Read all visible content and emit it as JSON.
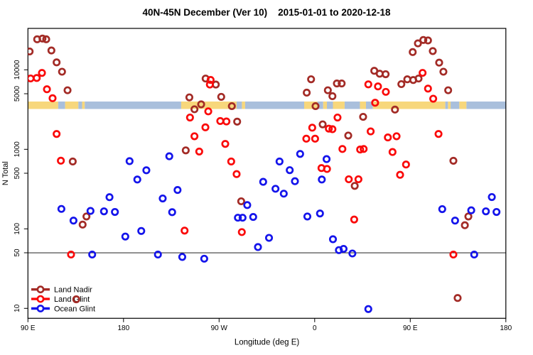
{
  "title": {
    "main": "40N-45N December (Ver 10)",
    "dates": "2015-01-01 to 2020-12-18"
  },
  "chart_data": {
    "type": "scatter",
    "xlabel": "Longitude (deg E)",
    "ylabel": "N Total",
    "x_axis": {
      "range_deg": [
        -270,
        180
      ],
      "ticks": [
        {
          "deg": -270,
          "label": "90 E"
        },
        {
          "deg": -180,
          "label": "180"
        },
        {
          "deg": -90,
          "label": "90 W"
        },
        {
          "deg": 0,
          "label": "0"
        },
        {
          "deg": 90,
          "label": "90 E"
        },
        {
          "deg": 180,
          "label": "180"
        }
      ]
    },
    "y_axis": {
      "scale": "log",
      "range": [
        7.5,
        33000
      ],
      "ticks": [
        {
          "value": 10000,
          "label": "10000"
        },
        {
          "value": 5000,
          "label": "5000"
        },
        {
          "value": 1000,
          "label": "1000"
        },
        {
          "value": 500,
          "label": "500"
        },
        {
          "value": 100,
          "label": "100"
        },
        {
          "value": 50,
          "label": "50"
        },
        {
          "value": 10,
          "label": "10"
        }
      ],
      "gridline_at": 50
    },
    "map_band": {
      "value_top": 3990,
      "value_bottom": 3215,
      "land_color": "#F7D77C",
      "ocean_color": "#A9BFDC",
      "segments": [
        {
          "type": "land",
          "from": -270,
          "to": -241.5
        },
        {
          "type": "ocean",
          "from": -241.5,
          "to": -235
        },
        {
          "type": "land",
          "from": -235,
          "to": -222.5
        },
        {
          "type": "ocean",
          "from": -222.5,
          "to": -219
        },
        {
          "type": "land",
          "from": -219,
          "to": -216.5
        },
        {
          "type": "ocean",
          "from": -216.5,
          "to": -125.7
        },
        {
          "type": "land",
          "from": -125.7,
          "to": -73.5
        },
        {
          "type": "ocean",
          "from": -73.5,
          "to": -68.5
        },
        {
          "type": "land",
          "from": -68.5,
          "to": -65.5
        },
        {
          "type": "ocean",
          "from": -65.5,
          "to": -9.9
        },
        {
          "type": "land",
          "from": -9.9,
          "to": 2.6
        },
        {
          "type": "ocean",
          "from": 2.6,
          "to": 8
        },
        {
          "type": "land",
          "from": 8,
          "to": 11.5
        },
        {
          "type": "ocean",
          "from": 11.5,
          "to": 17.2
        },
        {
          "type": "land",
          "from": 17.2,
          "to": 28.2
        },
        {
          "type": "ocean",
          "from": 28.2,
          "to": 42.6
        },
        {
          "type": "land",
          "from": 42.6,
          "to": 48.3
        },
        {
          "type": "ocean",
          "from": 48.3,
          "to": 54.8
        },
        {
          "type": "land",
          "from": 54.8,
          "to": 123
        },
        {
          "type": "ocean",
          "from": 123,
          "to": 125.5
        },
        {
          "type": "land",
          "from": 125.5,
          "to": 128
        },
        {
          "type": "ocean",
          "from": 128,
          "to": 136.2
        },
        {
          "type": "land",
          "from": 136.2,
          "to": 142.9
        },
        {
          "type": "ocean",
          "from": 142.9,
          "to": 180
        }
      ]
    },
    "legend": {
      "position": "bottom-left"
    },
    "series": [
      {
        "name": "Land Nadir",
        "color": "#A32B26",
        "points": [
          [
            -268.4,
            17000
          ],
          [
            -261.3,
            24200
          ],
          [
            -256.3,
            24700
          ],
          [
            -252.8,
            24200
          ],
          [
            -247.9,
            17500
          ],
          [
            -243,
            12400
          ],
          [
            -237.9,
            9460
          ],
          [
            -232.7,
            5530
          ],
          [
            -227.8,
            703
          ],
          [
            -224.5,
            13
          ],
          [
            -218.5,
            113
          ],
          [
            -214.9,
            143
          ],
          [
            -121.4,
            970
          ],
          [
            -118,
            4500
          ],
          [
            -113.2,
            3190
          ],
          [
            -106.9,
            3680
          ],
          [
            -102.7,
            7760
          ],
          [
            -93.1,
            6520
          ],
          [
            -88,
            4570
          ],
          [
            -78,
            3490
          ],
          [
            -73,
            2230
          ],
          [
            -69.2,
            222
          ],
          [
            -7.5,
            5160
          ],
          [
            -3.4,
            7600
          ],
          [
            0.8,
            3490
          ],
          [
            7.5,
            2060
          ],
          [
            12.4,
            5530
          ],
          [
            16.7,
            4660
          ],
          [
            20.9,
            6730
          ],
          [
            25.4,
            6730
          ],
          [
            31.6,
            1490
          ],
          [
            37.7,
            347
          ],
          [
            45.6,
            2560
          ],
          [
            56.1,
            9710
          ],
          [
            61.2,
            8930
          ],
          [
            66.8,
            8800
          ],
          [
            75.6,
            3160
          ],
          [
            81.6,
            6600
          ],
          [
            87.2,
            7590
          ],
          [
            92.3,
            16700
          ],
          [
            92.8,
            7440
          ],
          [
            97.2,
            21500
          ],
          [
            97.8,
            7760
          ],
          [
            102.3,
            23700
          ],
          [
            106.7,
            23400
          ],
          [
            111.2,
            17200
          ],
          [
            117.2,
            12300
          ],
          [
            121.2,
            9460
          ],
          [
            125.7,
            5530
          ],
          [
            130.6,
            718
          ],
          [
            134.6,
            13.5
          ],
          [
            141.4,
            111
          ],
          [
            144.7,
            143
          ]
        ]
      },
      {
        "name": "Land Glint",
        "color": "#FA0A0A",
        "points": [
          [
            -267.5,
            7780
          ],
          [
            -261.7,
            7890
          ],
          [
            -256.8,
            9140
          ],
          [
            -252.1,
            5690
          ],
          [
            -246.8,
            4390
          ],
          [
            -243,
            1560
          ],
          [
            -239,
            719
          ],
          [
            -229.4,
            47.5
          ],
          [
            -122.5,
            95
          ],
          [
            -117.4,
            2510
          ],
          [
            -113.2,
            1460
          ],
          [
            -108.7,
            938
          ],
          [
            -102.9,
            1890
          ],
          [
            -100.2,
            3000
          ],
          [
            -98,
            7460
          ],
          [
            -98.7,
            6520
          ],
          [
            -88.9,
            2270
          ],
          [
            -84.2,
            1170
          ],
          [
            -83.1,
            2240
          ],
          [
            -78.6,
            703
          ],
          [
            -73.5,
            488
          ],
          [
            -68.6,
            91
          ],
          [
            -7.9,
            1360
          ],
          [
            -2.3,
            1870
          ],
          [
            0.4,
            1360
          ],
          [
            6.4,
            581
          ],
          [
            11.6,
            566
          ],
          [
            13.3,
            1820
          ],
          [
            16.7,
            1790
          ],
          [
            21.5,
            2510
          ],
          [
            26.1,
            1010
          ],
          [
            32.1,
            420
          ],
          [
            37.2,
            131
          ],
          [
            41.2,
            420
          ],
          [
            42.8,
            994
          ],
          [
            46.1,
            1010
          ],
          [
            50.5,
            6560
          ],
          [
            52.7,
            1680
          ],
          [
            56.9,
            3850
          ],
          [
            59.6,
            6180
          ],
          [
            67,
            5280
          ],
          [
            68.9,
            1410
          ],
          [
            73.3,
            925
          ],
          [
            77.1,
            1460
          ],
          [
            80.4,
            478
          ],
          [
            86,
            644
          ],
          [
            101.6,
            9150
          ],
          [
            106.7,
            5800
          ],
          [
            111.6,
            4330
          ],
          [
            116.6,
            1560
          ],
          [
            130.6,
            47.5
          ]
        ]
      },
      {
        "name": "Ocean Glint",
        "color": "#1414EB",
        "points": [
          [
            -238.5,
            178
          ],
          [
            -227.1,
            127
          ],
          [
            -211.1,
            168
          ],
          [
            -209.5,
            47.5
          ],
          [
            -198.4,
            166
          ],
          [
            -193.2,
            250
          ],
          [
            -188.1,
            163
          ],
          [
            -178.3,
            80
          ],
          [
            -174.3,
            710
          ],
          [
            -167,
            417
          ],
          [
            -163.3,
            94
          ],
          [
            -158.5,
            545
          ],
          [
            -147.6,
            47.5
          ],
          [
            -143.1,
            241
          ],
          [
            -136.9,
            818
          ],
          [
            -134.2,
            162
          ],
          [
            -129.1,
            308
          ],
          [
            -124.7,
            44.3
          ],
          [
            -104,
            42.1
          ],
          [
            -72.3,
            138
          ],
          [
            -67.9,
            138
          ],
          [
            -63.5,
            199
          ],
          [
            -57.9,
            141
          ],
          [
            -53.4,
            59
          ],
          [
            -48.5,
            390
          ],
          [
            -43,
            77
          ],
          [
            -36.9,
            319
          ],
          [
            -33.1,
            703
          ],
          [
            -29.1,
            277
          ],
          [
            -23.5,
            547
          ],
          [
            -18.6,
            397
          ],
          [
            -13.7,
            875
          ],
          [
            -6.9,
            143
          ],
          [
            5,
            156
          ],
          [
            6.7,
            417
          ],
          [
            11.2,
            753
          ],
          [
            17.2,
            74
          ],
          [
            22.8,
            54
          ],
          [
            27.2,
            56
          ],
          [
            35.5,
            49
          ],
          [
            50.5,
            9.8
          ],
          [
            120.1,
            177
          ],
          [
            132.2,
            127
          ],
          [
            147.4,
            171
          ],
          [
            150.2,
            47.5
          ],
          [
            161.2,
            166
          ],
          [
            166.8,
            251
          ],
          [
            171.2,
            163
          ]
        ]
      }
    ]
  }
}
